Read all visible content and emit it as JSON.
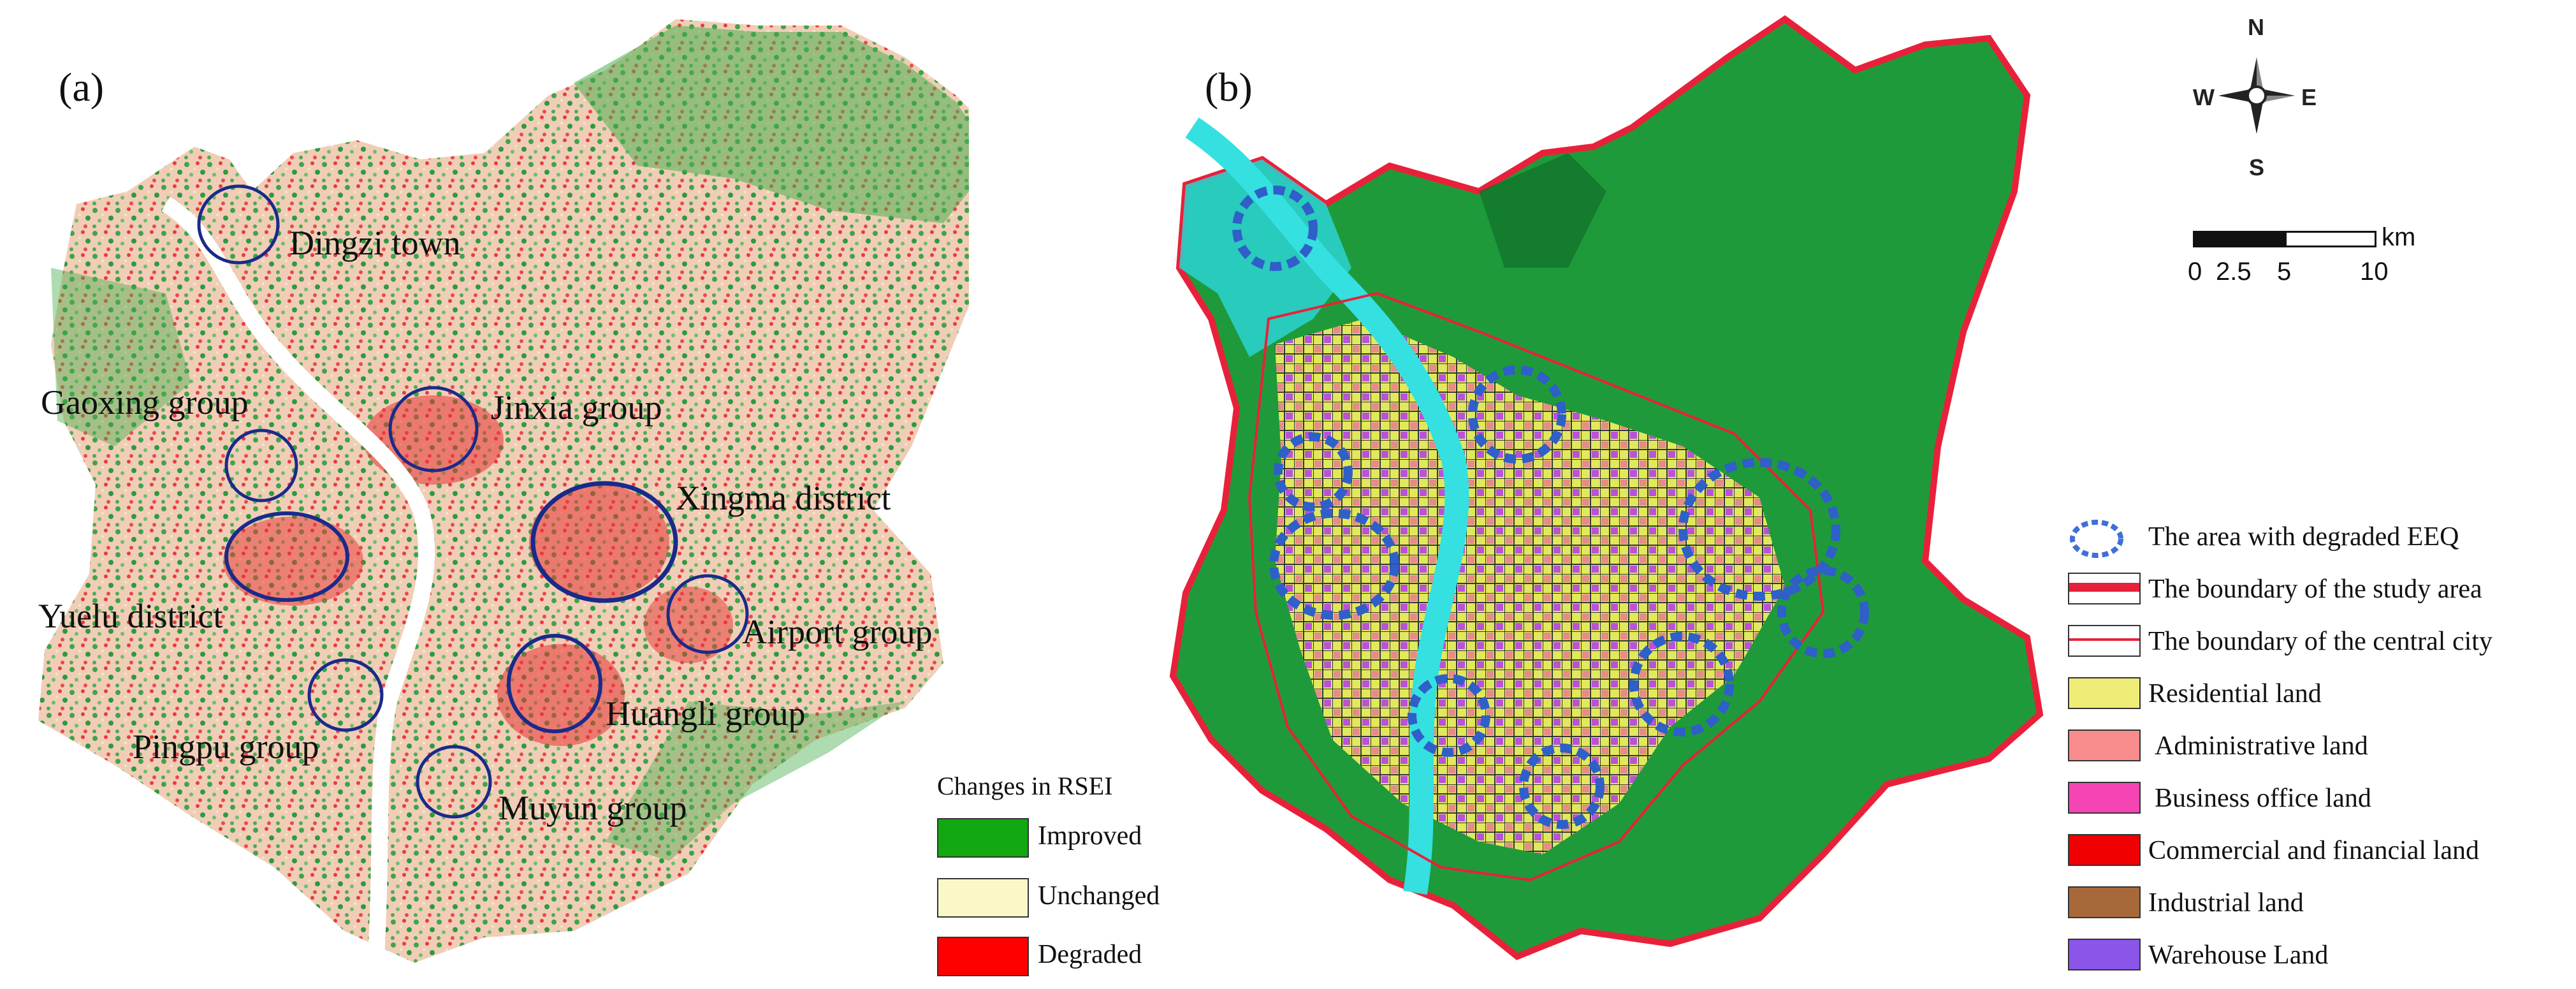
{
  "panel_a": {
    "label": "(a)",
    "places": [
      {
        "key": "dingzi",
        "label": "Dingzi town"
      },
      {
        "key": "jinxia",
        "label": "Jinxia group"
      },
      {
        "key": "gaoxing",
        "label": "Gaoxing group"
      },
      {
        "key": "xingma",
        "label": "Xingma district"
      },
      {
        "key": "yuelu",
        "label": "Yuelu district"
      },
      {
        "key": "airport",
        "label": "Airport group"
      },
      {
        "key": "huangli",
        "label": "Huangli  group"
      },
      {
        "key": "pingpu",
        "label": "Pingpu group"
      },
      {
        "key": "muyun",
        "label": "Muyun group"
      }
    ],
    "legend": {
      "title": "Changes in  RSEI",
      "items": [
        {
          "label": "Improved",
          "color": "#11a811"
        },
        {
          "label": "Unchanged",
          "color": "#fbf8c8"
        },
        {
          "label": "Degraded",
          "color": "#ff0000"
        }
      ]
    }
  },
  "panel_b": {
    "label": "(b)",
    "compass": {
      "n": "N",
      "s": "S",
      "e": "E",
      "w": "W"
    },
    "scale": {
      "unit": "km",
      "ticks": [
        "0",
        "2.5",
        "5",
        "10"
      ]
    },
    "legend": {
      "items": [
        {
          "label": "The area with degraded EEQ",
          "type": "dashed-circle",
          "color": "#3f6fd8"
        },
        {
          "label": "The boundary of the study area",
          "type": "thick-line",
          "color": "#e8213a"
        },
        {
          "label": "The boundary of the central city",
          "type": "thin-line",
          "color": "#e8213a"
        },
        {
          "label": "Residential land",
          "type": "swatch",
          "color": "#f0ec78"
        },
        {
          "label": "Administrative land",
          "type": "swatch",
          "color": "#f98c8c"
        },
        {
          "label": "Business office land",
          "type": "swatch",
          "color": "#f545b5"
        },
        {
          "label": "Commercial and financial land",
          "type": "swatch",
          "color": "#f00000"
        },
        {
          "label": "Industrial land",
          "type": "swatch",
          "color": "#a8693a"
        },
        {
          "label": "Warehouse Land",
          "type": "swatch",
          "color": "#8a55e8"
        }
      ]
    }
  }
}
